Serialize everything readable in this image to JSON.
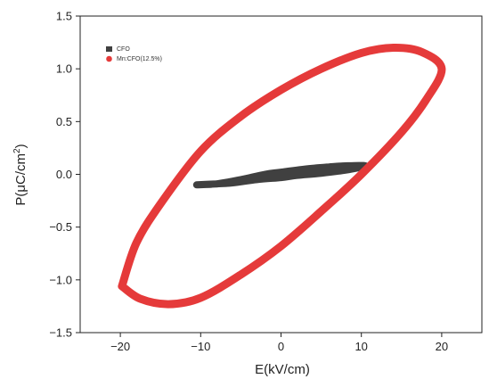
{
  "chart_data": {
    "type": "line",
    "title": "",
    "xlabel": "E(kV/cm)",
    "ylabel_main": "P(μC/cm",
    "ylabel_sup": "2",
    "ylabel_tail": ")",
    "xlim": [
      -25,
      25
    ],
    "ylim": [
      -1.5,
      1.5
    ],
    "x_ticks": [
      -20,
      -10,
      0,
      10,
      20
    ],
    "x_tick_labels": [
      "−20",
      "−10",
      "0",
      "10",
      "20"
    ],
    "y_ticks": [
      1.5,
      1.0,
      0.5,
      0.0,
      -0.5,
      -1.0,
      -1.5
    ],
    "y_tick_labels": [
      "1.5",
      "1.0",
      "0.5",
      "0.0",
      "−0.5",
      "−1.0",
      "−1.5"
    ],
    "grid": false,
    "legend_position": "top-left",
    "series": [
      {
        "name": "CFO",
        "color": "#404040",
        "marker": "square",
        "closed": true,
        "x": [
          -10.5,
          -8,
          -5,
          -2,
          0,
          3,
          6,
          8,
          10.5,
          8,
          5,
          2,
          0,
          -3,
          -6,
          -8,
          -10.5
        ],
        "y": [
          -0.1,
          -0.09,
          -0.05,
          0.0,
          0.02,
          0.05,
          0.07,
          0.08,
          0.08,
          0.04,
          0.01,
          -0.01,
          -0.03,
          -0.05,
          -0.08,
          -0.09,
          -0.1
        ]
      },
      {
        "name": "Mn:CFO(12.5%)",
        "color": "#e53a3a",
        "marker": "circle",
        "closed": true,
        "x": [
          -19.8,
          -18,
          -15,
          -10,
          -5,
          0,
          5,
          10,
          14,
          17.5,
          20,
          18,
          15,
          10,
          5,
          0,
          -5,
          -10,
          -14,
          -17.5,
          -19.8
        ],
        "y": [
          -1.06,
          -0.65,
          -0.28,
          0.22,
          0.55,
          0.8,
          1.0,
          1.15,
          1.2,
          1.16,
          1.0,
          0.7,
          0.4,
          0.0,
          -0.35,
          -0.68,
          -0.95,
          -1.17,
          -1.23,
          -1.18,
          -1.06
        ]
      }
    ]
  }
}
